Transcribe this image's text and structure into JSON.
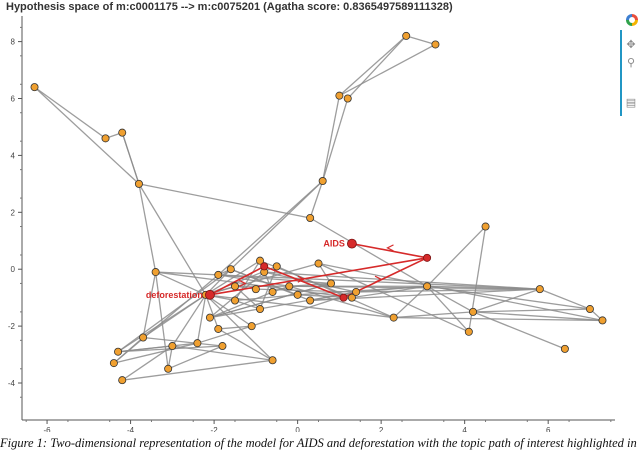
{
  "title": "Hypothesis space of m:c0001175 --> m:c0075201 (Agatha score: 0.8365497589111328)",
  "caption": "Figure 1: Two-dimensional representation of the model for AIDS and deforestation with the topic path of interest highlighted in",
  "toolbar": {
    "items": [
      {
        "name": "pan-tool-icon",
        "glyph": "✥"
      },
      {
        "name": "wheel-zoom-tool-icon",
        "glyph": "⚲"
      },
      {
        "name": "save-tool-icon",
        "glyph": "▤"
      }
    ],
    "accent_color": "#2196c4"
  },
  "chart_data": {
    "type": "scatter",
    "title": "Hypothesis space of m:c0001175 --> m:c0075201 (Agatha score: 0.8365497589111328)",
    "xlim": [
      -6.6,
      7.6
    ],
    "ylim": [
      -5.3,
      8.9
    ],
    "xticks": [
      -6,
      -4,
      -2,
      0,
      2,
      4,
      6
    ],
    "yticks": [
      -4,
      -2,
      0,
      2,
      4,
      6,
      8
    ],
    "node_color": "#f0a030",
    "path_color": "#d62a2a",
    "edge_color": "#8c8c8c",
    "nodes": [
      {
        "id": 0,
        "x": -6.3,
        "y": 6.4
      },
      {
        "id": 1,
        "x": -4.6,
        "y": 4.6
      },
      {
        "id": 2,
        "x": -4.2,
        "y": 4.8
      },
      {
        "id": 3,
        "x": -3.8,
        "y": 3.0
      },
      {
        "id": 4,
        "x": 0.6,
        "y": 3.1
      },
      {
        "id": 5,
        "x": 0.3,
        "y": 1.8
      },
      {
        "id": 6,
        "x": 1.0,
        "y": 6.1
      },
      {
        "id": 7,
        "x": 1.2,
        "y": 6.0
      },
      {
        "id": 8,
        "x": 2.6,
        "y": 8.2
      },
      {
        "id": 9,
        "x": 3.3,
        "y": 7.9
      },
      {
        "id": 10,
        "x": -3.4,
        "y": -0.1
      },
      {
        "id": 11,
        "x": -2.2,
        "y": -0.9
      },
      {
        "id": 12,
        "x": -1.9,
        "y": -0.2
      },
      {
        "id": 13,
        "x": -1.6,
        "y": 0.0
      },
      {
        "id": 14,
        "x": -0.9,
        "y": 0.3
      },
      {
        "id": 15,
        "x": -0.8,
        "y": -0.1
      },
      {
        "id": 16,
        "x": -0.5,
        "y": 0.1
      },
      {
        "id": 17,
        "x": -1.5,
        "y": -0.6
      },
      {
        "id": 18,
        "x": -1.0,
        "y": -0.7
      },
      {
        "id": 19,
        "x": 0.5,
        "y": 0.2
      },
      {
        "id": 20,
        "x": 0.8,
        "y": -0.5
      },
      {
        "id": 21,
        "x": -0.2,
        "y": -0.6
      },
      {
        "id": 22,
        "x": 0.0,
        "y": -0.9
      },
      {
        "id": 23,
        "x": -0.6,
        "y": -0.8
      },
      {
        "id": 24,
        "x": -2.1,
        "y": -1.7
      },
      {
        "id": 25,
        "x": -1.9,
        "y": -2.1
      },
      {
        "id": 26,
        "x": -1.1,
        "y": -2.0
      },
      {
        "id": 27,
        "x": -0.9,
        "y": -1.4
      },
      {
        "id": 28,
        "x": -1.5,
        "y": -1.1
      },
      {
        "id": 29,
        "x": 0.3,
        "y": -1.1
      },
      {
        "id": 30,
        "x": 1.3,
        "y": -1.0
      },
      {
        "id": 31,
        "x": 1.4,
        "y": -0.8
      },
      {
        "id": 32,
        "x": 2.3,
        "y": -1.7
      },
      {
        "id": 33,
        "x": 3.1,
        "y": -0.6
      },
      {
        "id": 34,
        "x": 4.2,
        "y": -1.5
      },
      {
        "id": 35,
        "x": 4.5,
        "y": 1.5
      },
      {
        "id": 36,
        "x": 5.8,
        "y": -0.7
      },
      {
        "id": 37,
        "x": 7.0,
        "y": -1.4
      },
      {
        "id": 38,
        "x": 7.3,
        "y": -1.8
      },
      {
        "id": 39,
        "x": 6.4,
        "y": -2.8
      },
      {
        "id": 40,
        "x": 4.1,
        "y": -2.2
      },
      {
        "id": 41,
        "x": -4.3,
        "y": -2.9
      },
      {
        "id": 42,
        "x": -4.4,
        "y": -3.3
      },
      {
        "id": 43,
        "x": -4.2,
        "y": -3.9
      },
      {
        "id": 44,
        "x": -3.7,
        "y": -2.4
      },
      {
        "id": 45,
        "x": -3.0,
        "y": -2.7
      },
      {
        "id": 46,
        "x": -3.1,
        "y": -3.5
      },
      {
        "id": 47,
        "x": -2.4,
        "y": -2.6
      },
      {
        "id": 48,
        "x": -1.8,
        "y": -2.7
      },
      {
        "id": 49,
        "x": -0.6,
        "y": -3.2
      }
    ],
    "edges": [
      [
        0,
        1
      ],
      [
        0,
        3
      ],
      [
        1,
        2
      ],
      [
        2,
        3
      ],
      [
        3,
        5
      ],
      [
        3,
        10
      ],
      [
        3,
        11
      ],
      [
        5,
        4
      ],
      [
        4,
        6
      ],
      [
        4,
        7
      ],
      [
        4,
        12
      ],
      [
        6,
        9
      ],
      [
        7,
        8
      ],
      [
        8,
        9
      ],
      [
        6,
        8
      ],
      [
        5,
        33
      ],
      [
        4,
        13
      ],
      [
        10,
        11
      ],
      [
        10,
        30
      ],
      [
        10,
        36
      ],
      [
        10,
        44
      ],
      [
        11,
        13
      ],
      [
        11,
        14
      ],
      [
        11,
        17
      ],
      [
        11,
        19
      ],
      [
        11,
        25
      ],
      [
        11,
        26
      ],
      [
        11,
        28
      ],
      [
        11,
        32
      ],
      [
        11,
        41
      ],
      [
        12,
        20
      ],
      [
        12,
        21
      ],
      [
        13,
        22
      ],
      [
        13,
        29
      ],
      [
        14,
        23
      ],
      [
        14,
        30
      ],
      [
        15,
        31
      ],
      [
        16,
        32
      ],
      [
        16,
        27
      ],
      [
        17,
        33
      ],
      [
        18,
        31
      ],
      [
        19,
        40
      ],
      [
        19,
        20
      ],
      [
        20,
        24
      ],
      [
        21,
        32
      ],
      [
        21,
        36
      ],
      [
        22,
        30
      ],
      [
        22,
        28
      ],
      [
        23,
        24
      ],
      [
        24,
        31
      ],
      [
        25,
        26
      ],
      [
        25,
        49
      ],
      [
        27,
        28
      ],
      [
        29,
        31
      ],
      [
        29,
        36
      ],
      [
        30,
        33
      ],
      [
        31,
        33
      ],
      [
        32,
        34
      ],
      [
        32,
        33
      ],
      [
        33,
        35
      ],
      [
        33,
        34
      ],
      [
        33,
        36
      ],
      [
        33,
        37
      ],
      [
        34,
        36
      ],
      [
        34,
        38
      ],
      [
        34,
        39
      ],
      [
        35,
        40
      ],
      [
        36,
        37
      ],
      [
        37,
        38
      ],
      [
        38,
        32
      ],
      [
        36,
        31
      ],
      [
        40,
        33
      ],
      [
        41,
        45
      ],
      [
        41,
        47
      ],
      [
        41,
        48
      ],
      [
        42,
        44
      ],
      [
        42,
        47
      ],
      [
        43,
        45
      ],
      [
        43,
        49
      ],
      [
        44,
        48
      ],
      [
        45,
        46
      ],
      [
        46,
        48
      ],
      [
        44,
        11
      ],
      [
        45,
        11
      ],
      [
        47,
        11
      ],
      [
        47,
        26
      ],
      [
        42,
        12
      ],
      [
        10,
        46
      ],
      [
        13,
        41
      ],
      [
        2,
        3
      ],
      [
        20,
        21
      ],
      [
        14,
        28
      ],
      [
        22,
        33
      ],
      [
        16,
        11
      ],
      [
        15,
        24
      ],
      [
        27,
        17
      ],
      [
        12,
        13
      ],
      [
        29,
        30
      ],
      [
        23,
        21
      ],
      [
        17,
        18
      ],
      [
        15,
        36
      ],
      [
        19,
        38
      ],
      [
        26,
        31
      ],
      [
        24,
        20
      ],
      [
        34,
        37
      ],
      [
        11,
        49
      ],
      [
        45,
        49
      ]
    ],
    "path_nodes": [
      {
        "id": "aids",
        "x": 1.3,
        "y": 0.9,
        "label": "AIDS"
      },
      {
        "id": "deforestation",
        "x": -2.1,
        "y": -0.9,
        "label": "deforestation"
      },
      {
        "id": "p1",
        "x": 3.1,
        "y": 0.4
      },
      {
        "id": "p2",
        "x": -0.8,
        "y": 0.1
      },
      {
        "id": "p3",
        "x": 1.1,
        "y": -1.0
      }
    ],
    "path_edges": [
      [
        "aids",
        "p1"
      ],
      [
        "p1",
        "deforestation"
      ],
      [
        "deforestation",
        "p2"
      ],
      [
        "p2",
        "p3"
      ],
      [
        "p3",
        "p1"
      ]
    ],
    "arrow_marks": [
      {
        "x": 2.2,
        "y": 0.75,
        "dir": "left"
      },
      {
        "x": 1.95,
        "y": -0.35,
        "dir": "right"
      },
      {
        "x": -1.3,
        "y": -0.5,
        "dir": "right"
      },
      {
        "x": 0.1,
        "y": -0.35,
        "dir": "right"
      }
    ]
  }
}
